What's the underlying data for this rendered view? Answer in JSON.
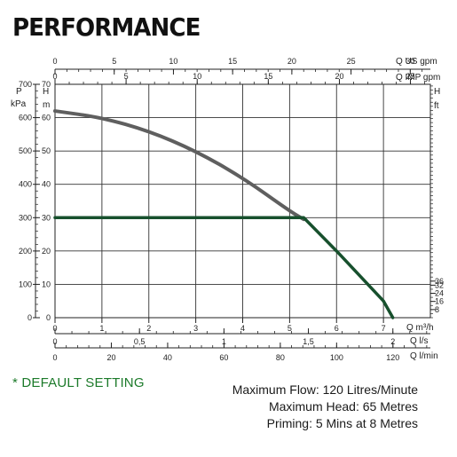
{
  "title": "PERFORMANCE",
  "note": "* DEFAULT SETTING",
  "specs": {
    "flow": "Maximum Flow: 120 Litres/Minute",
    "head": "Maximum Head: 65 Metres",
    "priming": "Priming: 5 Mins at 8 Metres"
  },
  "colors": {
    "pump_curve": "#5f5f5f",
    "default_setting": "#17502d",
    "note_text": "#1c7a2a"
  },
  "chart_data": {
    "type": "line",
    "grid": true,
    "axes": {
      "x_primary": {
        "label": "Q m³/h",
        "range": [
          0,
          8
        ],
        "ticks": [
          "0",
          "1",
          "2",
          "3",
          "4",
          "5",
          "6",
          "7"
        ]
      },
      "x_ls": {
        "label": "Q l/s",
        "ticks": [
          "0",
          "0,5",
          "1",
          "1,5",
          "2"
        ]
      },
      "x_lmin": {
        "label": "Q l/min",
        "ticks": [
          "0",
          "20",
          "40",
          "60",
          "80",
          "100",
          "120"
        ]
      },
      "x_usgpm": {
        "label": "Q US gpm",
        "ticks": [
          "0",
          "5",
          "10",
          "15",
          "20",
          "25",
          "30"
        ]
      },
      "x_impgpm": {
        "label": "Q IMP gpm",
        "ticks": [
          "0",
          "5",
          "10",
          "15",
          "20",
          "25"
        ]
      },
      "y_pressure": {
        "label_top": "P",
        "label_unit": "kPa",
        "ticks": [
          "0",
          "100",
          "200",
          "300",
          "400",
          "500",
          "600",
          "700"
        ]
      },
      "y_head_m": {
        "label_top": "H",
        "label_unit": "m",
        "range": [
          0,
          70
        ],
        "ticks": [
          "0",
          "10",
          "20",
          "30",
          "40",
          "50",
          "60",
          "70"
        ]
      },
      "y_head_ft": {
        "label_top": "H",
        "label_unit": "ft",
        "ticks": [
          "8",
          "16",
          "24",
          "32",
          "36"
        ]
      }
    },
    "series": [
      {
        "x": [
          0,
          1,
          2,
          3,
          4,
          5,
          5.3
        ],
        "y": [
          62,
          60,
          56,
          50,
          42,
          32,
          29.5
        ]
      },
      {
        "x": [
          0,
          5.3,
          6,
          7,
          7.2
        ],
        "y": [
          30,
          30,
          20,
          5,
          0
        ]
      }
    ]
  }
}
